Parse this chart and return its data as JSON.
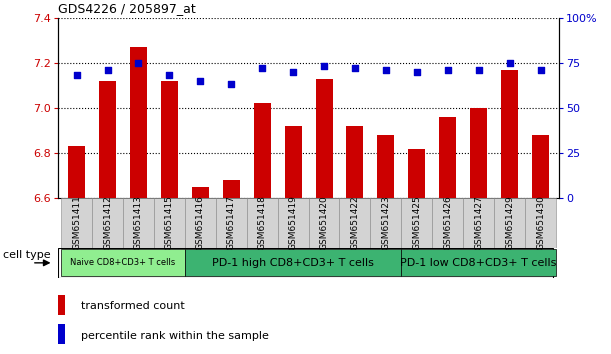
{
  "title": "GDS4226 / 205897_at",
  "categories": [
    "GSM651411",
    "GSM651412",
    "GSM651413",
    "GSM651415",
    "GSM651416",
    "GSM651417",
    "GSM651418",
    "GSM651419",
    "GSM651420",
    "GSM651422",
    "GSM651423",
    "GSM651425",
    "GSM651426",
    "GSM651427",
    "GSM651429",
    "GSM651430"
  ],
  "bar_values": [
    6.83,
    7.12,
    7.27,
    7.12,
    6.65,
    6.68,
    7.02,
    6.92,
    7.13,
    6.92,
    6.88,
    6.82,
    6.96,
    7.0,
    7.17,
    6.88
  ],
  "dot_values": [
    68,
    71,
    75,
    68,
    65,
    63,
    72,
    70,
    73,
    72,
    71,
    70,
    71,
    71,
    75,
    71
  ],
  "ylim_left": [
    6.6,
    7.4
  ],
  "ylim_right": [
    0,
    100
  ],
  "bar_color": "#cc0000",
  "dot_color": "#0000cc",
  "tick_label_color_left": "#cc0000",
  "tick_label_color_right": "#0000cc",
  "group_spans": [
    {
      "start": 0,
      "end": 3,
      "label": "Naive CD8+CD3+ T cells",
      "color": "#90ee90",
      "font_size": 6
    },
    {
      "start": 4,
      "end": 10,
      "label": "PD-1 high CD8+CD3+ T cells",
      "color": "#3cb371",
      "font_size": 8
    },
    {
      "start": 11,
      "end": 15,
      "label": "PD-1 low CD8+CD3+ T cells",
      "color": "#3cb371",
      "font_size": 8
    }
  ],
  "cell_type_label": "cell type",
  "legend_bar_label": "transformed count",
  "legend_dot_label": "percentile rank within the sample",
  "yticks_left": [
    6.6,
    6.8,
    7.0,
    7.2,
    7.4
  ],
  "yticks_right": [
    0,
    25,
    50,
    75,
    100
  ],
  "xticklabel_bg": "#d3d3d3",
  "xticklabel_fontsize": 6.5
}
